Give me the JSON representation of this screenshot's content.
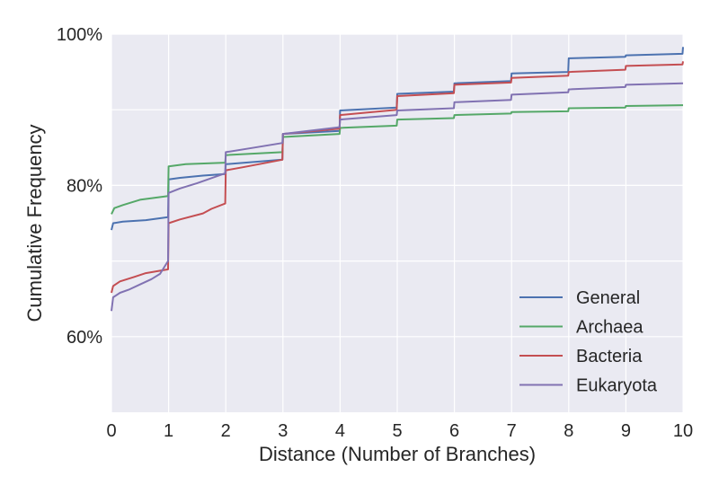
{
  "chart_data": {
    "type": "line",
    "title": "",
    "xlabel": "Distance (Number of Branches)",
    "ylabel": "Cumulative Frequency",
    "xlim": [
      0,
      10
    ],
    "ylim": [
      50,
      100
    ],
    "x_ticks": [
      0,
      1,
      2,
      3,
      4,
      5,
      6,
      7,
      8,
      9,
      10
    ],
    "x_tick_labels": [
      "0",
      "1",
      "2",
      "3",
      "4",
      "5",
      "6",
      "7",
      "8",
      "9",
      "10"
    ],
    "y_ticks": [
      60,
      70,
      80,
      90,
      100
    ],
    "y_tick_labels": [
      "60%",
      "",
      "80%",
      "",
      "100%"
    ],
    "grid": true,
    "background": "#EAEAF2",
    "legend_position": "lower-right",
    "series": [
      {
        "name": "General",
        "color": "#4C72B0",
        "points": [
          [
            0,
            74.1
          ],
          [
            0.03,
            75.0
          ],
          [
            0.2,
            75.2
          ],
          [
            0.6,
            75.4
          ],
          [
            0.99,
            75.8
          ],
          [
            1.0,
            80.8
          ],
          [
            1.2,
            81.0
          ],
          [
            1.6,
            81.3
          ],
          [
            1.99,
            81.5
          ],
          [
            2.0,
            82.8
          ],
          [
            2.99,
            83.4
          ],
          [
            3.0,
            86.8
          ],
          [
            3.99,
            87.2
          ],
          [
            4.0,
            89.9
          ],
          [
            4.99,
            90.3
          ],
          [
            5.0,
            92.1
          ],
          [
            5.99,
            92.4
          ],
          [
            6.0,
            93.5
          ],
          [
            6.99,
            93.8
          ],
          [
            7.0,
            94.8
          ],
          [
            7.99,
            95.0
          ],
          [
            8.0,
            96.8
          ],
          [
            8.99,
            97.0
          ],
          [
            9.0,
            97.2
          ],
          [
            9.99,
            97.4
          ],
          [
            10.0,
            98.3
          ]
        ]
      },
      {
        "name": "Archaea",
        "color": "#55A868",
        "points": [
          [
            0,
            76.2
          ],
          [
            0.05,
            77.0
          ],
          [
            0.2,
            77.4
          ],
          [
            0.5,
            78.1
          ],
          [
            0.99,
            78.6
          ],
          [
            1.0,
            82.5
          ],
          [
            1.3,
            82.8
          ],
          [
            1.99,
            83.0
          ],
          [
            2.0,
            84.0
          ],
          [
            2.99,
            84.4
          ],
          [
            3.0,
            86.4
          ],
          [
            3.99,
            86.8
          ],
          [
            4.0,
            87.6
          ],
          [
            4.99,
            87.9
          ],
          [
            5.0,
            88.7
          ],
          [
            5.99,
            88.9
          ],
          [
            6.0,
            89.3
          ],
          [
            6.99,
            89.5
          ],
          [
            7.0,
            89.7
          ],
          [
            7.99,
            89.8
          ],
          [
            8.0,
            90.2
          ],
          [
            8.99,
            90.3
          ],
          [
            9.0,
            90.5
          ],
          [
            10.0,
            90.6
          ]
        ]
      },
      {
        "name": "Bacteria",
        "color": "#C44E52",
        "points": [
          [
            0,
            65.8
          ],
          [
            0.03,
            66.7
          ],
          [
            0.15,
            67.3
          ],
          [
            0.4,
            67.9
          ],
          [
            0.6,
            68.4
          ],
          [
            0.99,
            68.9
          ],
          [
            1.0,
            75.0
          ],
          [
            1.2,
            75.5
          ],
          [
            1.6,
            76.3
          ],
          [
            1.75,
            76.9
          ],
          [
            1.99,
            77.6
          ],
          [
            2.0,
            82.0
          ],
          [
            2.3,
            82.4
          ],
          [
            2.99,
            83.4
          ],
          [
            3.0,
            86.8
          ],
          [
            3.99,
            87.5
          ],
          [
            4.0,
            89.3
          ],
          [
            4.99,
            90.0
          ],
          [
            5.0,
            91.8
          ],
          [
            5.99,
            92.2
          ],
          [
            6.0,
            93.3
          ],
          [
            6.99,
            93.6
          ],
          [
            7.0,
            94.2
          ],
          [
            7.99,
            94.5
          ],
          [
            8.0,
            95.0
          ],
          [
            8.99,
            95.3
          ],
          [
            9.0,
            95.8
          ],
          [
            9.99,
            96.0
          ],
          [
            10.0,
            96.4
          ]
        ]
      },
      {
        "name": "Eukaryota",
        "color": "#8172B2",
        "points": [
          [
            0,
            63.4
          ],
          [
            0.03,
            65.2
          ],
          [
            0.15,
            65.8
          ],
          [
            0.3,
            66.2
          ],
          [
            0.5,
            66.9
          ],
          [
            0.7,
            67.6
          ],
          [
            0.85,
            68.3
          ],
          [
            0.99,
            70.0
          ],
          [
            1.0,
            79.0
          ],
          [
            1.2,
            79.6
          ],
          [
            1.5,
            80.3
          ],
          [
            1.99,
            81.6
          ],
          [
            2.0,
            84.4
          ],
          [
            2.5,
            85.0
          ],
          [
            2.99,
            85.6
          ],
          [
            3.0,
            86.8
          ],
          [
            3.99,
            87.7
          ],
          [
            4.0,
            88.7
          ],
          [
            4.99,
            89.3
          ],
          [
            5.0,
            89.9
          ],
          [
            5.99,
            90.2
          ],
          [
            6.0,
            91.0
          ],
          [
            6.99,
            91.3
          ],
          [
            7.0,
            92.0
          ],
          [
            7.99,
            92.3
          ],
          [
            8.0,
            92.7
          ],
          [
            8.99,
            93.0
          ],
          [
            9.0,
            93.3
          ],
          [
            10.0,
            93.5
          ]
        ]
      }
    ]
  }
}
